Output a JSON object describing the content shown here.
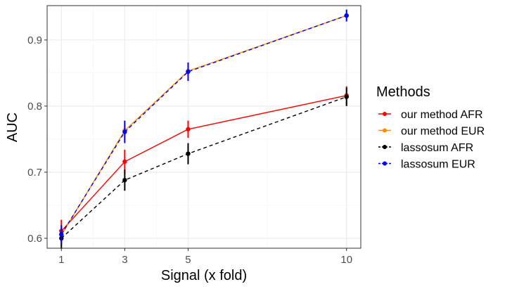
{
  "chart_data": {
    "type": "line",
    "xlabel": "Signal (x fold)",
    "ylabel": "AUC",
    "xlim": [
      0.55,
      10.45
    ],
    "ylim": [
      0.585,
      0.952
    ],
    "x_ticks": [
      1,
      3,
      5,
      10
    ],
    "x_tick_labels": [
      "1",
      "3",
      "5",
      "10"
    ],
    "x_minor_gridlines": [
      2,
      4,
      7.5
    ],
    "y_ticks": [
      0.6,
      0.7,
      0.8,
      0.9
    ],
    "y_tick_labels": [
      "0.6",
      "0.7",
      "0.8",
      "0.9"
    ],
    "y_minor_gridlines": [
      0.65,
      0.75,
      0.85
    ],
    "grid": true,
    "legend": {
      "title": "Methods",
      "position": "right"
    },
    "series": [
      {
        "name": "our method AFR",
        "color": "#FF0000",
        "dash": "solid",
        "x": [
          1,
          3,
          5,
          10
        ],
        "y": [
          0.611,
          0.716,
          0.765,
          0.816
        ],
        "lower": [
          0.596,
          0.698,
          0.752,
          0.801
        ],
        "upper": [
          0.628,
          0.734,
          0.778,
          0.83
        ]
      },
      {
        "name": "our method EUR",
        "color": "#FF8C00",
        "dash": "solid",
        "x": [
          1,
          3,
          5,
          10
        ],
        "y": [
          0.605,
          0.763,
          0.853,
          0.937
        ],
        "lower": [
          0.59,
          0.749,
          0.842,
          0.93
        ],
        "upper": [
          0.62,
          0.777,
          0.865,
          0.945
        ]
      },
      {
        "name": "lassosum AFR",
        "color": "#000000",
        "dash": "dashed",
        "x": [
          1,
          3,
          5,
          10
        ],
        "y": [
          0.6,
          0.688,
          0.728,
          0.814
        ],
        "lower": [
          0.584,
          0.672,
          0.712,
          0.8
        ],
        "upper": [
          0.616,
          0.704,
          0.744,
          0.828
        ]
      },
      {
        "name": "lassosum EUR",
        "color": "#0000FF",
        "dash": "dashed",
        "x": [
          1,
          3,
          5,
          10
        ],
        "y": [
          0.606,
          0.761,
          0.852,
          0.937
        ],
        "lower": [
          0.592,
          0.744,
          0.838,
          0.928
        ],
        "upper": [
          0.62,
          0.778,
          0.866,
          0.946
        ]
      }
    ]
  }
}
